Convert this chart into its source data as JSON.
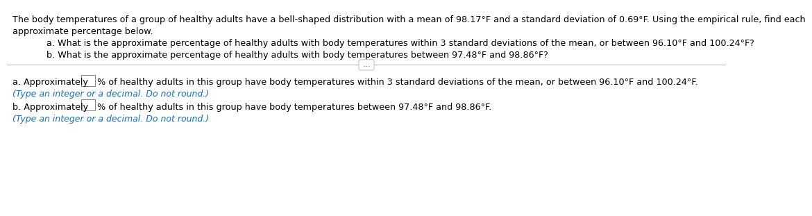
{
  "bg_color": "#ffffff",
  "text_color": "#000000",
  "blue_color": "#1a6eb5",
  "line_color": "#bbbbbb",
  "intro_line1": "The body temperatures of a group of healthy adults have a bell-shaped distribution with a mean of 98.17°F and a standard deviation of 0.69°F. Using the empirical rule, find each",
  "intro_line2": "approximate percentage below.",
  "q_a": "a. What is the approximate percentage of healthy adults with body temperatures within 3 standard deviations of the mean, or between 96.10°F and 100.24°F?",
  "q_b": "b. What is the approximate percentage of healthy adults with body temperatures between 97.48°F and 98.86°F?",
  "ans_a_pre": "a. Approximately ",
  "ans_a_post": "% of healthy adults in this group have body temperatures within 3 standard deviations of the mean, or between 96.10°F and 100.24°F.",
  "ans_a_note": "(Type an integer or a decimal. Do not round.)",
  "ans_b_pre": "b. Approximately ",
  "ans_b_post": "% of healthy adults in this group have body temperatures between 97.48°F and 98.86°F.",
  "ans_b_note": "(Type an integer or a decimal. Do not round.)",
  "font_size_main": 9.2,
  "font_size_note": 9.0,
  "indent_intro": 0.008,
  "indent_q": 0.055
}
